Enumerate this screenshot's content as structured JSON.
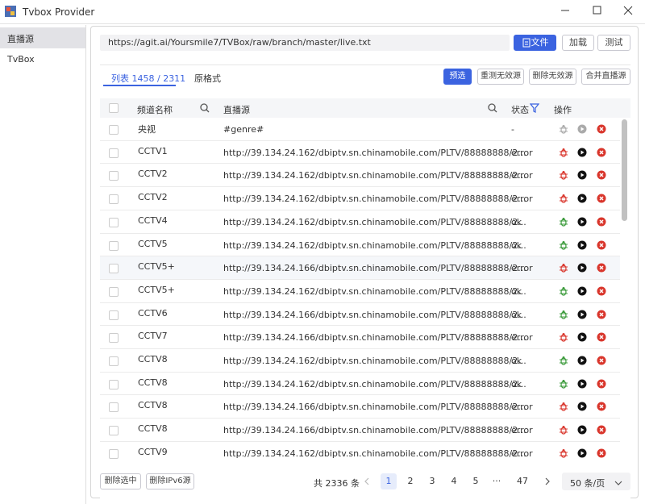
{
  "window": {
    "title": "Tvbox Provider"
  },
  "sidebar": {
    "items": [
      "直播源",
      "TvBox"
    ]
  },
  "source": {
    "url": "https://agit.ai/Yoursmile7/TVBox/raw/branch/master/live.txt",
    "buttons": [
      "文件",
      "加载",
      "测试"
    ]
  },
  "tabs": [
    "列表 1458 / 2311",
    "原格式"
  ],
  "actions": [
    "预选",
    "重测无效源",
    "删除无效源",
    "合并直播源"
  ],
  "table": {
    "headers": [
      "频道名称",
      "直播源",
      "状态",
      "操作"
    ],
    "rows": [
      [
        "央视",
        "#genre#",
        "-"
      ],
      [
        "CCTV1",
        "http://39.134.24.162/dbiptv.sn.chinamobile.com/PLTV/88888888/2...",
        "error"
      ],
      [
        "CCTV2",
        "http://39.134.24.162/dbiptv.sn.chinamobile.com/PLTV/88888888/2...",
        "error"
      ],
      [
        "CCTV2",
        "http://39.134.24.162/dbiptv.sn.chinamobile.com/PLTV/88888888/2...",
        "error"
      ],
      [
        "CCTV4",
        "http://39.134.24.162/dbiptv.sn.chinamobile.com/PLTV/88888888/2...",
        "ok"
      ],
      [
        "CCTV5",
        "http://39.134.24.162/dbiptv.sn.chinamobile.com/PLTV/88888888/2...",
        "ok"
      ],
      [
        "CCTV5+",
        "http://39.134.24.166/dbiptv.sn.chinamobile.com/PLTV/88888888/2...",
        "error"
      ],
      [
        "CCTV5+",
        "http://39.134.24.162/dbiptv.sn.chinamobile.com/PLTV/88888888/2...",
        "ok"
      ],
      [
        "CCTV6",
        "http://39.134.24.166/dbiptv.sn.chinamobile.com/PLTV/88888888/2...",
        "ok"
      ],
      [
        "CCTV7",
        "http://39.134.24.166/dbiptv.sn.chinamobile.com/PLTV/88888888/2...",
        "error"
      ],
      [
        "CCTV8",
        "http://39.134.24.162/dbiptv.sn.chinamobile.com/PLTV/88888888/2...",
        "ok"
      ],
      [
        "CCTV8",
        "http://39.134.24.162/dbiptv.sn.chinamobile.com/PLTV/88888888/2...",
        "ok"
      ],
      [
        "CCTV8",
        "http://39.134.24.166/dbiptv.sn.chinamobile.com/PLTV/88888888/2...",
        "error"
      ],
      [
        "CCTV8",
        "http://39.134.24.166/dbiptv.sn.chinamobile.com/PLTV/88888888/2...",
        "error"
      ],
      [
        "CCTV9",
        "http://39.134.24.162/dbiptv.sn.chinamobile.com/PLTV/88888888/2...",
        "error"
      ]
    ]
  },
  "footer": {
    "buttons": [
      "删除选中",
      "删除IPv6源"
    ],
    "total": "共 2336 条",
    "pages": [
      "1",
      "2",
      "3",
      "4",
      "5",
      "···",
      "47"
    ],
    "page_size": "50 条/页"
  }
}
